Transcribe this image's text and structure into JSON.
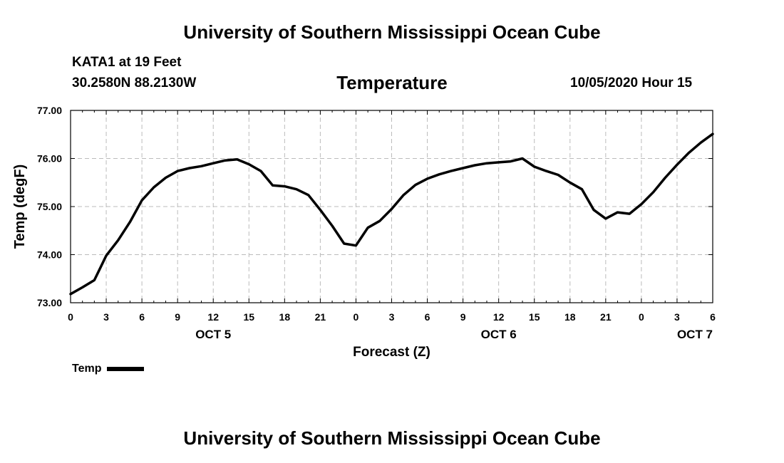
{
  "header": {
    "title": "University of Southern Mississippi Ocean Cube",
    "station": "KATA1 at 19 Feet",
    "coords": "30.2580N 88.2130W",
    "valid_time": "10/05/2020 Hour 15"
  },
  "footer": {
    "title": "University of Southern Mississippi Ocean Cube"
  },
  "legend": {
    "label": "Temp",
    "color": "#000000"
  },
  "chart_data": {
    "type": "line",
    "title": "Temperature",
    "xlabel": "Forecast (Z)",
    "ylabel": "Temp (degF)",
    "ylim": [
      73.0,
      77.0
    ],
    "yticks": [
      "73.00",
      "74.00",
      "75.00",
      "76.00",
      "77.00"
    ],
    "xlim": [
      0,
      54
    ],
    "xticks": [
      "0",
      "3",
      "6",
      "9",
      "12",
      "15",
      "18",
      "21",
      "0",
      "3",
      "6",
      "9",
      "12",
      "15",
      "18",
      "21",
      "0",
      "3",
      "6"
    ],
    "day_labels": [
      {
        "label": "OCT 5",
        "hour": 12
      },
      {
        "label": "OCT 6",
        "hour": 36
      },
      {
        "label": "OCT 7",
        "hour": 52.5
      }
    ],
    "grid": true,
    "series": [
      {
        "name": "Temp",
        "color": "#000000",
        "x": [
          0,
          1,
          2,
          3,
          4,
          5,
          6,
          7,
          8,
          9,
          10,
          11,
          12,
          13,
          14,
          15,
          16,
          17,
          18,
          19,
          20,
          21,
          22,
          23,
          24,
          25,
          26,
          27,
          28,
          29,
          30,
          31,
          32,
          33,
          34,
          35,
          36,
          37,
          38,
          39,
          40,
          41,
          42,
          43,
          44,
          45,
          46,
          47,
          48,
          49,
          50,
          51,
          52,
          53,
          54
        ],
        "values": [
          73.18,
          73.32,
          73.47,
          73.98,
          74.3,
          74.68,
          75.13,
          75.4,
          75.6,
          75.74,
          75.8,
          75.84,
          75.9,
          75.96,
          75.98,
          75.88,
          75.74,
          75.44,
          75.42,
          75.36,
          75.24,
          74.93,
          74.6,
          74.23,
          74.19,
          74.56,
          74.7,
          74.95,
          75.24,
          75.45,
          75.58,
          75.67,
          75.74,
          75.8,
          75.86,
          75.9,
          75.92,
          75.94,
          76.0,
          75.83,
          75.74,
          75.66,
          75.5,
          75.36,
          74.93,
          74.75,
          74.88,
          74.85,
          75.05,
          75.3,
          75.6,
          75.87,
          76.12,
          76.33,
          76.51
        ]
      }
    ]
  }
}
